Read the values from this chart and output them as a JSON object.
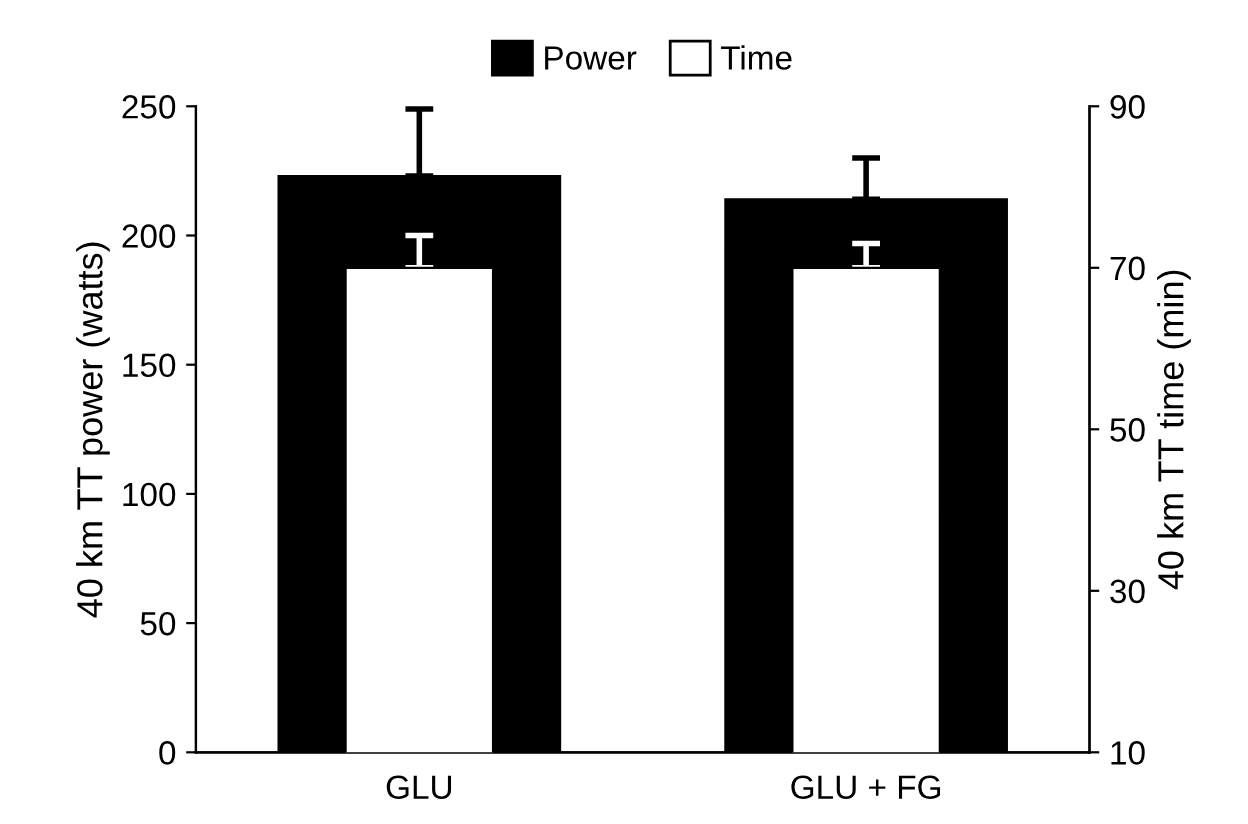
{
  "chart_data": {
    "type": "bar",
    "categories": [
      "GLU",
      "GLU + FG"
    ],
    "series": [
      {
        "name": "Power",
        "color": "#000000",
        "values": [
          223,
          214
        ],
        "errors": [
          26,
          16
        ]
      },
      {
        "name": "Time",
        "color": "#ffffff",
        "values": [
          70,
          70
        ],
        "errors": [
          4,
          3
        ],
        "axis": "y2"
      }
    ],
    "ylabel": "40 km TT power (watts)",
    "y2label": "40 km TT time (min)",
    "ylim": [
      0,
      250
    ],
    "yticks": [
      0,
      50,
      100,
      150,
      200,
      250
    ],
    "y2lim": [
      10,
      90
    ],
    "y2ticks": [
      10,
      30,
      50,
      70,
      90
    ],
    "legend": "top",
    "grid": false
  }
}
